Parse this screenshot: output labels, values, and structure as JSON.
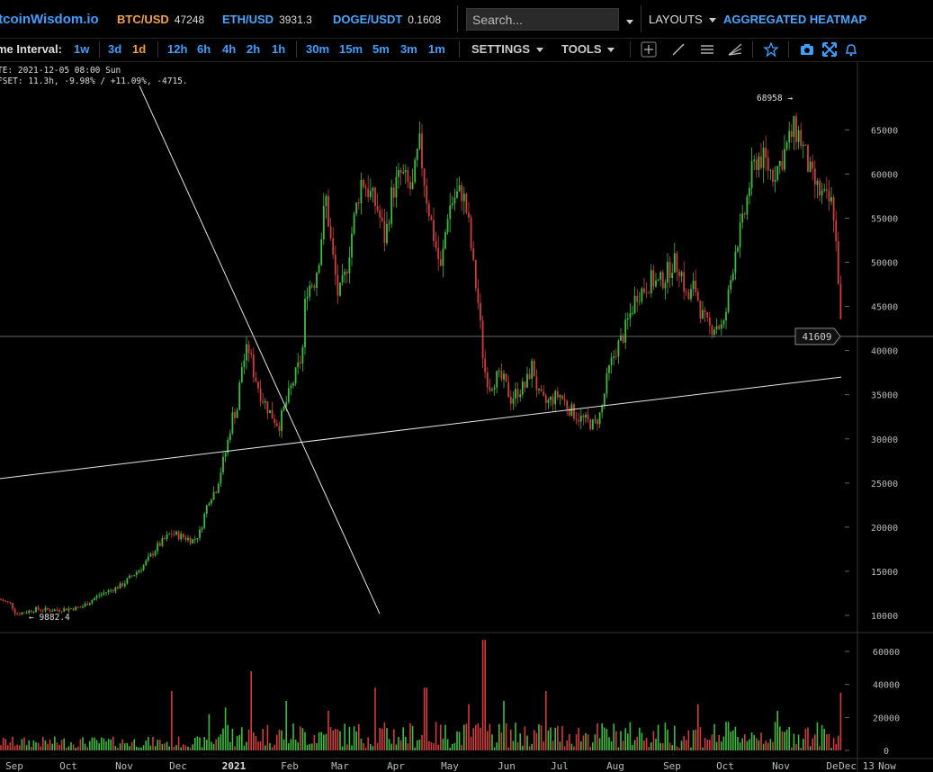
{
  "header": {
    "logo": "itcoinWisdom.io",
    "tickers": [
      {
        "symbol": "BTC/USD",
        "value": "47248",
        "color": "#f5a04a"
      },
      {
        "symbol": "ETH/USD",
        "value": "3931.3",
        "color": "#4aa6ff"
      },
      {
        "symbol": "DOGE/USDT",
        "value": "0.1608",
        "color": "#4aa6ff"
      }
    ],
    "search_placeholder": "Search...",
    "layouts_label": "LAYOUTS",
    "heatmap_label": "AGGREGATED HEATMAP"
  },
  "toolbar": {
    "interval_label": "me Interval:",
    "intervals": [
      "1w",
      "3d",
      "1d",
      "12h",
      "6h",
      "4h",
      "2h",
      "1h",
      "30m",
      "15m",
      "5m",
      "3m",
      "1m"
    ],
    "active_interval": "1d",
    "settings_label": "SETTINGS",
    "tools_label": "TOOLS",
    "icons": [
      "crosshair-icon",
      "trendline-icon",
      "horizontal-lines-icon",
      "fan-icon",
      "star-icon",
      "camera-icon",
      "fullscreen-icon",
      "bell-icon"
    ]
  },
  "info": {
    "line1": "TE: 2021-12-05 08:00 Sun",
    "line2": "FSET: 11.3h, -9.98% / +11.09%, -4715."
  },
  "colors": {
    "up": "#3cbd3c",
    "down": "#d23c3c",
    "grid": "#262626",
    "axis_text": "#bbbbbb"
  },
  "chart_data": {
    "type": "candlestick",
    "price_ticks": [
      10000,
      15000,
      20000,
      25000,
      30000,
      35000,
      40000,
      45000,
      50000,
      55000,
      60000,
      65000
    ],
    "volume_ticks": [
      0,
      20000,
      40000,
      60000
    ],
    "x_labels": [
      "Sep",
      "Oct",
      "Nov",
      "Dec",
      "2021",
      "Feb",
      "Mar",
      "Apr",
      "May",
      "Jun",
      "Jul",
      "Aug",
      "Sep",
      "Oct",
      "Nov",
      "De"
    ],
    "x_label_extra": "Dec 13",
    "x_label_now": "Now",
    "high_label": "68958 →",
    "low_label": "← 9882.4",
    "current_price_label": "41609",
    "current_price": 41609,
    "price_anchors": [
      [
        0,
        11800
      ],
      [
        12,
        11300
      ],
      [
        18,
        10150
      ],
      [
        40,
        10700
      ],
      [
        60,
        10600
      ],
      [
        90,
        10900
      ],
      [
        110,
        12300
      ],
      [
        135,
        13400
      ],
      [
        160,
        15700
      ],
      [
        175,
        17800
      ],
      [
        190,
        19300
      ],
      [
        200,
        19000
      ],
      [
        215,
        18500
      ],
      [
        222,
        19400
      ],
      [
        232,
        23200
      ],
      [
        240,
        24300
      ],
      [
        252,
        29000
      ],
      [
        258,
        32500
      ],
      [
        264,
        33500
      ],
      [
        268,
        38000
      ],
      [
        276,
        40400
      ],
      [
        282,
        37500
      ],
      [
        290,
        35000
      ],
      [
        300,
        33000
      ],
      [
        310,
        31500
      ],
      [
        316,
        33500
      ],
      [
        326,
        36500
      ],
      [
        336,
        39500
      ],
      [
        340,
        47000
      ],
      [
        350,
        48000
      ],
      [
        355,
        51000
      ],
      [
        362,
        57500
      ],
      [
        368,
        52000
      ],
      [
        376,
        46000
      ],
      [
        384,
        48500
      ],
      [
        392,
        54000
      ],
      [
        402,
        59500
      ],
      [
        410,
        58000
      ],
      [
        420,
        56000
      ],
      [
        428,
        52500
      ],
      [
        436,
        58000
      ],
      [
        446,
        60000
      ],
      [
        458,
        58000
      ],
      [
        466,
        63500
      ],
      [
        474,
        57500
      ],
      [
        482,
        53000
      ],
      [
        490,
        49000
      ],
      [
        498,
        56000
      ],
      [
        506,
        57500
      ],
      [
        514,
        58000
      ],
      [
        520,
        55000
      ],
      [
        526,
        49500
      ],
      [
        532,
        45000
      ],
      [
        538,
        38000
      ],
      [
        544,
        36000
      ],
      [
        552,
        37000
      ],
      [
        560,
        36500
      ],
      [
        568,
        34500
      ],
      [
        576,
        35500
      ],
      [
        584,
        36000
      ],
      [
        592,
        38500
      ],
      [
        598,
        35000
      ],
      [
        606,
        34000
      ],
      [
        614,
        34500
      ],
      [
        622,
        35000
      ],
      [
        632,
        33500
      ],
      [
        642,
        32500
      ],
      [
        652,
        32000
      ],
      [
        660,
        31500
      ],
      [
        668,
        33000
      ],
      [
        676,
        37500
      ],
      [
        684,
        40000
      ],
      [
        692,
        41500
      ],
      [
        700,
        44000
      ],
      [
        708,
        46500
      ],
      [
        716,
        47000
      ],
      [
        724,
        48000
      ],
      [
        732,
        47500
      ],
      [
        740,
        48500
      ],
      [
        748,
        50000
      ],
      [
        756,
        49500
      ],
      [
        764,
        45500
      ],
      [
        772,
        47500
      ],
      [
        780,
        44000
      ],
      [
        788,
        42500
      ],
      [
        796,
        43000
      ],
      [
        804,
        42500
      ],
      [
        810,
        46500
      ],
      [
        818,
        52000
      ],
      [
        826,
        54500
      ],
      [
        834,
        59500
      ],
      [
        842,
        62000
      ],
      [
        850,
        61500
      ],
      [
        858,
        60000
      ],
      [
        866,
        61000
      ],
      [
        874,
        63000
      ],
      [
        882,
        65000
      ],
      [
        888,
        64500
      ],
      [
        894,
        62500
      ],
      [
        902,
        59500
      ],
      [
        910,
        58000
      ],
      [
        918,
        57000
      ],
      [
        926,
        56500
      ],
      [
        932,
        48000
      ],
      [
        935,
        41609
      ]
    ],
    "volume_spikes": [
      [
        280,
        48000
      ],
      [
        190,
        36000
      ],
      [
        538,
        67000
      ],
      [
        418,
        38000
      ],
      [
        473,
        38000
      ],
      [
        608,
        36000
      ],
      [
        935,
        35000
      ],
      [
        560,
        30000
      ],
      [
        318,
        30000
      ],
      [
        250,
        26000
      ],
      [
        520,
        28000
      ],
      [
        775,
        28000
      ],
      [
        366,
        24000
      ],
      [
        865,
        24000
      ],
      [
        232,
        22000
      ]
    ],
    "trend_lines": [
      {
        "from": [
          0,
          25500
        ],
        "to": [
          935,
          37000
        ]
      },
      {
        "from": [
          155,
          70000
        ],
        "to": [
          422,
          10200
        ]
      }
    ]
  }
}
